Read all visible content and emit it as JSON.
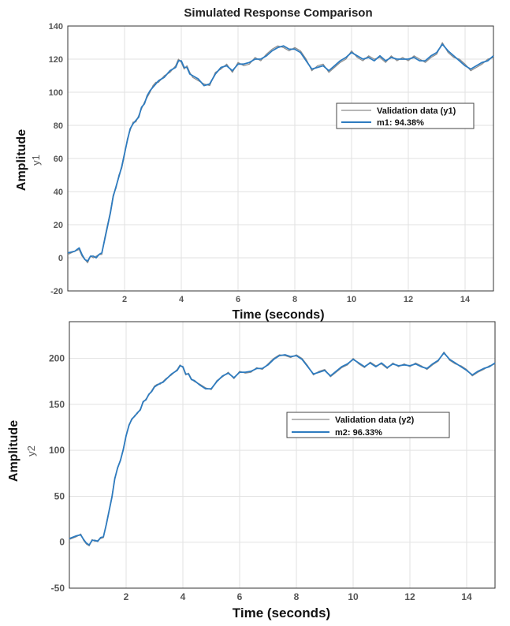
{
  "figure": {
    "title": "Simulated Response Comparison"
  },
  "chart_data": [
    {
      "type": "line",
      "ylabel": "Amplitude",
      "ylabel_sub": "y1",
      "xlabel": "Time (seconds)",
      "xlim": [
        0,
        15
      ],
      "ylim": [
        -20,
        140
      ],
      "xticks": [
        "2",
        "4",
        "6",
        "8",
        "10",
        "12",
        "14"
      ],
      "yticks": [
        "-20",
        "0",
        "20",
        "40",
        "60",
        "80",
        "100",
        "120",
        "140"
      ],
      "grid": true,
      "legend": {
        "placement": "center-right",
        "entries": [
          "Validation data (y1)",
          "m1: 94.38%"
        ]
      },
      "series": [
        {
          "name": "Validation data (y1)",
          "color": "#8c8c8c",
          "x": [
            0,
            0.25,
            0.4,
            0.5,
            0.6,
            0.7,
            0.8,
            0.9,
            1.0,
            1.1,
            1.2,
            1.3,
            1.4,
            1.5,
            1.6,
            1.7,
            1.8,
            1.9,
            2.0,
            2.1,
            2.2,
            2.3,
            2.4,
            2.5,
            2.6,
            2.7,
            2.8,
            2.9,
            3.0,
            3.1,
            3.2,
            3.3,
            3.4,
            3.6,
            3.8,
            3.9,
            4.0,
            4.1,
            4.2,
            4.3,
            4.4,
            4.6,
            4.8,
            5.0,
            5.2,
            5.4,
            5.6,
            5.8,
            6.0,
            6.2,
            6.4,
            6.6,
            6.8,
            7.0,
            7.2,
            7.4,
            7.6,
            7.8,
            8.0,
            8.2,
            8.4,
            8.6,
            8.8,
            9.0,
            9.2,
            9.4,
            9.6,
            9.8,
            10.0,
            10.2,
            10.4,
            10.6,
            10.8,
            11.0,
            11.2,
            11.4,
            11.6,
            11.8,
            12.0,
            12.2,
            12.4,
            12.6,
            12.8,
            13.0,
            13.2,
            13.4,
            13.6,
            13.8,
            14.0,
            14.2,
            14.4,
            14.6,
            14.8,
            15.0
          ],
          "values": [
            2,
            4,
            5,
            1,
            -1,
            -3,
            1,
            0,
            1,
            2,
            2,
            12,
            20,
            28,
            38,
            42,
            50,
            54,
            62,
            72,
            77,
            82,
            82,
            86,
            90,
            94,
            97,
            100,
            104,
            106,
            106,
            108,
            110,
            112,
            116,
            120,
            118,
            114,
            116,
            112,
            109,
            107,
            105,
            104,
            112,
            114,
            117,
            112,
            118,
            116,
            117,
            121,
            119,
            123,
            126,
            128,
            127,
            125,
            127,
            125,
            120,
            113,
            116,
            117,
            112,
            115,
            118,
            120,
            125,
            121,
            119,
            122,
            120,
            121,
            118,
            122,
            119,
            121,
            119,
            122,
            120,
            118,
            121,
            123,
            130,
            124,
            121,
            120,
            117,
            113,
            115,
            117,
            120,
            121
          ]
        },
        {
          "name": "m1: 94.38%",
          "color": "#2e7bbf",
          "x": [
            0,
            0.25,
            0.4,
            0.5,
            0.6,
            0.7,
            0.8,
            0.9,
            1.0,
            1.1,
            1.2,
            1.3,
            1.4,
            1.5,
            1.6,
            1.7,
            1.8,
            1.9,
            2.0,
            2.1,
            2.2,
            2.3,
            2.4,
            2.5,
            2.6,
            2.7,
            2.8,
            2.9,
            3.0,
            3.1,
            3.2,
            3.3,
            3.4,
            3.6,
            3.8,
            3.9,
            4.0,
            4.1,
            4.2,
            4.3,
            4.4,
            4.6,
            4.8,
            5.0,
            5.2,
            5.4,
            5.6,
            5.8,
            6.0,
            6.2,
            6.4,
            6.6,
            6.8,
            7.0,
            7.2,
            7.4,
            7.6,
            7.8,
            8.0,
            8.2,
            8.4,
            8.6,
            8.8,
            9.0,
            9.2,
            9.4,
            9.6,
            9.8,
            10.0,
            10.2,
            10.4,
            10.6,
            10.8,
            11.0,
            11.2,
            11.4,
            11.6,
            11.8,
            12.0,
            12.2,
            12.4,
            12.6,
            12.8,
            13.0,
            13.2,
            13.4,
            13.6,
            13.8,
            14.0,
            14.2,
            14.4,
            14.6,
            14.8,
            15.0
          ],
          "values": [
            3,
            4,
            6,
            2,
            -1,
            -2,
            1,
            1,
            0,
            2,
            3,
            11,
            19,
            27,
            37,
            43,
            49,
            55,
            63,
            71,
            78,
            81,
            83,
            85,
            91,
            93,
            98,
            101,
            103,
            105,
            107,
            108,
            109,
            113,
            115,
            119,
            119,
            115,
            115,
            111,
            110,
            108,
            104,
            105,
            111,
            115,
            116,
            113,
            117,
            117,
            118,
            120,
            120,
            122,
            125,
            127,
            128,
            126,
            126,
            124,
            119,
            114,
            115,
            116,
            113,
            116,
            119,
            121,
            124,
            122,
            120,
            121,
            119,
            122,
            119,
            121,
            120,
            120,
            120,
            121,
            119,
            119,
            122,
            124,
            129,
            125,
            122,
            119,
            116,
            114,
            116,
            118,
            119,
            122
          ]
        }
      ]
    },
    {
      "type": "line",
      "ylabel": "Amplitude",
      "ylabel_sub": "y2",
      "xlabel": "Time (seconds)",
      "xlim": [
        0,
        15
      ],
      "ylim": [
        -50,
        240
      ],
      "xticks": [
        "2",
        "4",
        "6",
        "8",
        "10",
        "12",
        "14"
      ],
      "yticks": [
        "-50",
        "0",
        "50",
        "100",
        "150",
        "200"
      ],
      "grid": true,
      "legend": {
        "placement": "center-right",
        "entries": [
          "Validation data (y2)",
          "m2: 96.33%"
        ]
      },
      "series": [
        {
          "name": "Validation data (y2)",
          "color": "#8c8c8c",
          "x": [
            0,
            0.25,
            0.4,
            0.5,
            0.6,
            0.7,
            0.8,
            0.9,
            1.0,
            1.1,
            1.2,
            1.3,
            1.4,
            1.5,
            1.6,
            1.7,
            1.8,
            1.9,
            2.0,
            2.1,
            2.2,
            2.3,
            2.4,
            2.5,
            2.6,
            2.7,
            2.8,
            2.9,
            3.0,
            3.1,
            3.2,
            3.3,
            3.4,
            3.6,
            3.8,
            3.9,
            4.0,
            4.1,
            4.2,
            4.3,
            4.4,
            4.6,
            4.8,
            5.0,
            5.2,
            5.4,
            5.6,
            5.8,
            6.0,
            6.2,
            6.4,
            6.6,
            6.8,
            7.0,
            7.2,
            7.4,
            7.6,
            7.8,
            8.0,
            8.2,
            8.4,
            8.6,
            8.8,
            9.0,
            9.2,
            9.4,
            9.6,
            9.8,
            10.0,
            10.2,
            10.4,
            10.6,
            10.8,
            11.0,
            11.2,
            11.4,
            11.6,
            11.8,
            12.0,
            12.2,
            12.4,
            12.6,
            12.8,
            13.0,
            13.2,
            13.4,
            13.6,
            13.8,
            14.0,
            14.2,
            14.4,
            14.6,
            14.8,
            15.0
          ],
          "values": [
            3,
            6,
            9,
            2,
            -2,
            -4,
            3,
            1,
            2,
            4,
            5,
            20,
            35,
            50,
            70,
            80,
            90,
            100,
            115,
            128,
            133,
            138,
            140,
            145,
            152,
            156,
            160,
            165,
            170,
            172,
            172,
            175,
            178,
            182,
            188,
            193,
            190,
            182,
            184,
            178,
            175,
            172,
            168,
            166,
            176,
            180,
            185,
            178,
            186,
            184,
            185,
            190,
            188,
            194,
            200,
            204,
            203,
            201,
            204,
            200,
            192,
            182,
            186,
            188,
            180,
            185,
            190,
            193,
            200,
            194,
            190,
            196,
            192,
            194,
            189,
            195,
            191,
            194,
            191,
            195,
            192,
            188,
            193,
            197,
            207,
            198,
            194,
            192,
            188,
            181,
            185,
            188,
            192,
            194
          ]
        },
        {
          "name": "m2: 96.33%",
          "color": "#2e7bbf",
          "x": [
            0,
            0.25,
            0.4,
            0.5,
            0.6,
            0.7,
            0.8,
            0.9,
            1.0,
            1.1,
            1.2,
            1.3,
            1.4,
            1.5,
            1.6,
            1.7,
            1.8,
            1.9,
            2.0,
            2.1,
            2.2,
            2.3,
            2.4,
            2.5,
            2.6,
            2.7,
            2.8,
            2.9,
            3.0,
            3.1,
            3.2,
            3.3,
            3.4,
            3.6,
            3.8,
            3.9,
            4.0,
            4.1,
            4.2,
            4.3,
            4.4,
            4.6,
            4.8,
            5.0,
            5.2,
            5.4,
            5.6,
            5.8,
            6.0,
            6.2,
            6.4,
            6.6,
            6.8,
            7.0,
            7.2,
            7.4,
            7.6,
            7.8,
            8.0,
            8.2,
            8.4,
            8.6,
            8.8,
            9.0,
            9.2,
            9.4,
            9.6,
            9.8,
            10.0,
            10.2,
            10.4,
            10.6,
            10.8,
            11.0,
            11.2,
            11.4,
            11.6,
            11.8,
            12.0,
            12.2,
            12.4,
            12.6,
            12.8,
            13.0,
            13.2,
            13.4,
            13.6,
            13.8,
            14.0,
            14.2,
            14.4,
            14.6,
            14.8,
            15.0
          ],
          "values": [
            4,
            7,
            8,
            3,
            -1,
            -3,
            2,
            2,
            1,
            5,
            6,
            19,
            34,
            49,
            69,
            81,
            89,
            101,
            116,
            127,
            134,
            137,
            141,
            144,
            153,
            155,
            161,
            164,
            169,
            171,
            173,
            174,
            177,
            183,
            187,
            192,
            191,
            183,
            183,
            177,
            176,
            171,
            167,
            167,
            175,
            181,
            184,
            179,
            185,
            185,
            186,
            189,
            189,
            193,
            199,
            203,
            204,
            202,
            203,
            199,
            191,
            183,
            185,
            187,
            181,
            186,
            191,
            194,
            199,
            195,
            191,
            195,
            191,
            195,
            190,
            194,
            192,
            193,
            192,
            194,
            191,
            189,
            194,
            198,
            206,
            199,
            195,
            191,
            187,
            182,
            186,
            189,
            191,
            195
          ]
        }
      ]
    }
  ]
}
